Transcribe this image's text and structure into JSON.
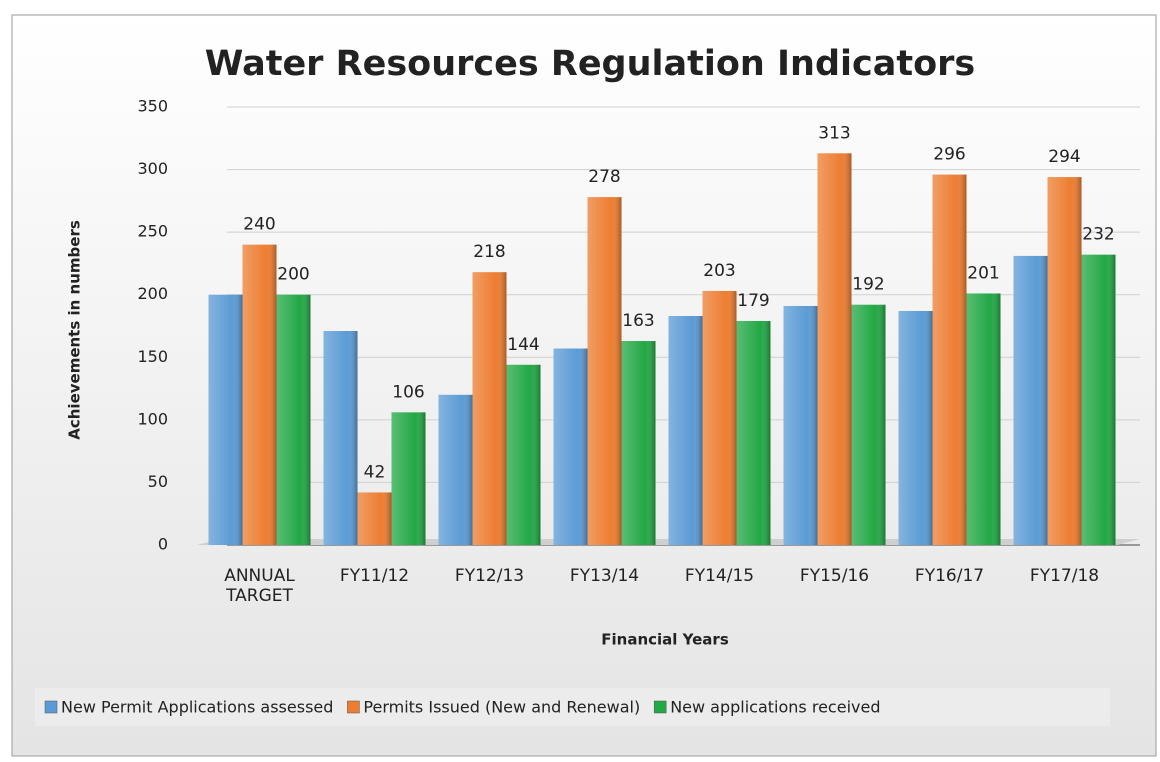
{
  "chart_data": {
    "type": "bar",
    "title": "Water Resources Regulation Indicators",
    "x_label": "Financial Years",
    "y_label": "Achievements in numbers",
    "categories": [
      "ANNUAL TARGET",
      "FY11/12",
      "FY12/13",
      "FY13/14",
      "FY14/15",
      "FY15/16",
      "FY16/17",
      "FY17/18"
    ],
    "series": [
      {
        "name": "New Permit Applications assessed",
        "color": "#5b9bd5",
        "show_labels": false,
        "values": [
          200,
          171,
          120,
          157,
          183,
          191,
          187,
          231
        ]
      },
      {
        "name": "Permits Issued (New and Renewal)",
        "color": "#ed7d31",
        "show_labels": true,
        "values": [
          240,
          42,
          218,
          278,
          203,
          313,
          296,
          294
        ]
      },
      {
        "name": "New applications received",
        "color": "#22a845",
        "show_labels": true,
        "values": [
          200,
          106,
          144,
          163,
          179,
          192,
          201,
          232
        ]
      }
    ],
    "ylim": [
      0,
      350
    ],
    "yticks": [
      0,
      50,
      100,
      150,
      200,
      250,
      300,
      350
    ],
    "grid": true,
    "legend": "bottom"
  }
}
